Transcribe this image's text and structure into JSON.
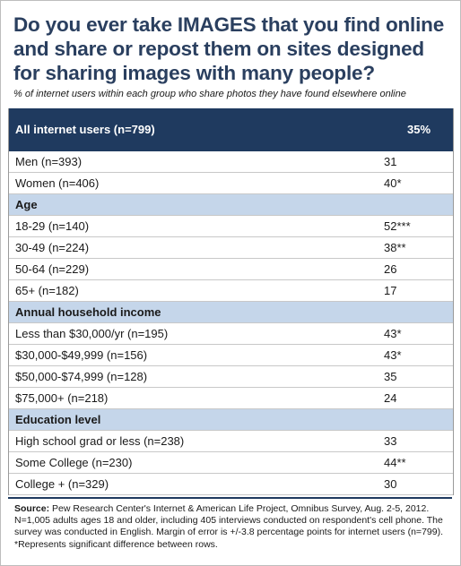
{
  "title": "Do you ever take IMAGES that you find online and share or repost them on sites designed for sharing images with many people?",
  "subtitle": "% of internet users within each group who share photos they have found elsewhere online",
  "table": {
    "header": {
      "label": "All internet users (n=799)",
      "value": "35%"
    },
    "rows": [
      {
        "label": "Men (n=393)",
        "value": "31"
      },
      {
        "label": "Women (n=406)",
        "value": "40*"
      }
    ],
    "age": {
      "heading": "Age",
      "rows": [
        {
          "label": "18-29 (n=140)",
          "value": "52***"
        },
        {
          "label": "30-49 (n=224)",
          "value": "38**"
        },
        {
          "label": "50-64 (n=229)",
          "value": "26"
        },
        {
          "label": "65+ (n=182)",
          "value": "17"
        }
      ]
    },
    "income": {
      "heading": "Annual household income",
      "rows": [
        {
          "label": "Less than $30,000/yr (n=195)",
          "value": "43*"
        },
        {
          "label": "$30,000-$49,999 (n=156)",
          "value": "43*"
        },
        {
          "label": "$50,000-$74,999 (n=128)",
          "value": "35"
        },
        {
          "label": "$75,000+ (n=218)",
          "value": "24"
        }
      ]
    },
    "education": {
      "heading": "Education level",
      "rows": [
        {
          "label": "High school grad or less (n=238)",
          "value": "33"
        },
        {
          "label": "Some College (n=230)",
          "value": "44**"
        },
        {
          "label": "College + (n=329)",
          "value": "30"
        }
      ]
    }
  },
  "source": {
    "label": "Source:",
    "text": "Pew Research Center's Internet & American Life Project, Omnibus Survey, Aug. 2-5, 2012. N=1,005 adults ages 18 and older, including 405 interviews conducted on respondent's cell phone. The survey was conducted in English. Margin of error is +/-3.8 percentage points for internet users (n=799). *Represents significant difference between rows."
  },
  "colors": {
    "header_bg": "#1f3a5f",
    "section_bg": "#c5d6ea",
    "title": "#2a3f5f"
  }
}
